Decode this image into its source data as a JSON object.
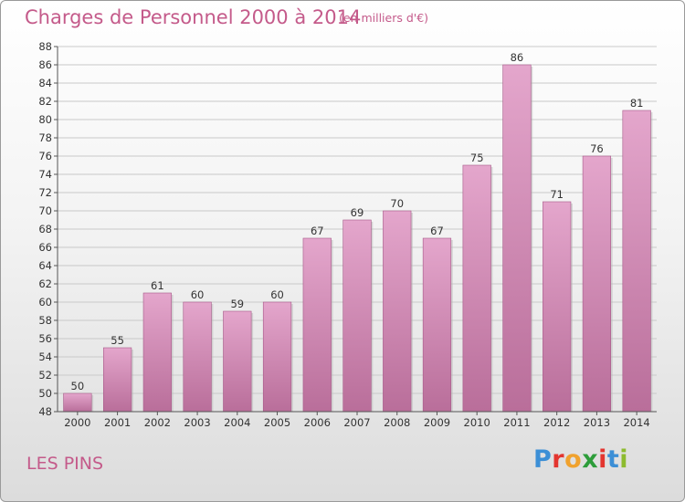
{
  "header": {
    "title": "Charges de Personnel 2000 à 2014",
    "subtitle": "(en milliers d'€)"
  },
  "footer": {
    "town": "LES PINS",
    "logo_letters": [
      "P",
      "r",
      "o",
      "x",
      "i",
      "t",
      "i"
    ],
    "logo_colors": [
      "#3c8fd6",
      "#e3352f",
      "#f0a22e",
      "#2d9d3a",
      "#e3352f",
      "#3c8fd6",
      "#8dbb2f"
    ]
  },
  "colors": {
    "title": "#c45a8a",
    "bar_top": "#e4a6cc",
    "bar_bottom": "#b96e9a",
    "grid": "#c9c9c9"
  },
  "chart_data": {
    "type": "bar",
    "categories": [
      "2000",
      "2001",
      "2002",
      "2003",
      "2004",
      "2005",
      "2006",
      "2007",
      "2008",
      "2009",
      "2010",
      "2011",
      "2012",
      "2013",
      "2014"
    ],
    "values": [
      50,
      55,
      61,
      60,
      59,
      60,
      67,
      69,
      70,
      67,
      75,
      86,
      71,
      76,
      81
    ],
    "ylim": [
      48,
      88
    ],
    "ytick_step": 2,
    "grid": true,
    "legend": "none",
    "xlabel": "",
    "ylabel": ""
  }
}
